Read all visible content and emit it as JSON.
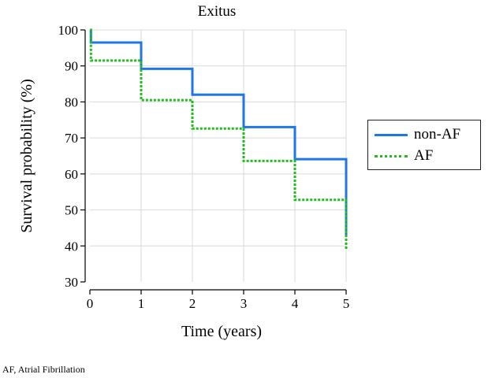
{
  "chart_data": {
    "type": "line",
    "step": true,
    "title": "Exitus",
    "xlabel": "Time (years)",
    "ylabel": "Survival probability (%)",
    "xlim": [
      0,
      5
    ],
    "ylim": [
      30,
      100
    ],
    "xticks": [
      0,
      1,
      2,
      3,
      4,
      5
    ],
    "yticks": [
      30,
      40,
      50,
      60,
      70,
      80,
      90,
      100
    ],
    "grid": true,
    "legend_position": "right",
    "series": [
      {
        "name": "non-AF",
        "color": "#1f77e6",
        "line_style": "solid",
        "x": [
          0,
          0.02,
          1,
          2,
          3,
          4,
          5
        ],
        "y": [
          100,
          96.5,
          89.2,
          82.0,
          73.0,
          64.1,
          43
        ]
      },
      {
        "name": "AF",
        "color": "#22bb22",
        "line_style": "dotted",
        "x": [
          0,
          0.02,
          1,
          2,
          3,
          4,
          5
        ],
        "y": [
          100,
          91.5,
          80.5,
          72.6,
          63.6,
          52.8,
          39
        ]
      }
    ]
  },
  "footnote": "AF, Atrial Fibrillation"
}
